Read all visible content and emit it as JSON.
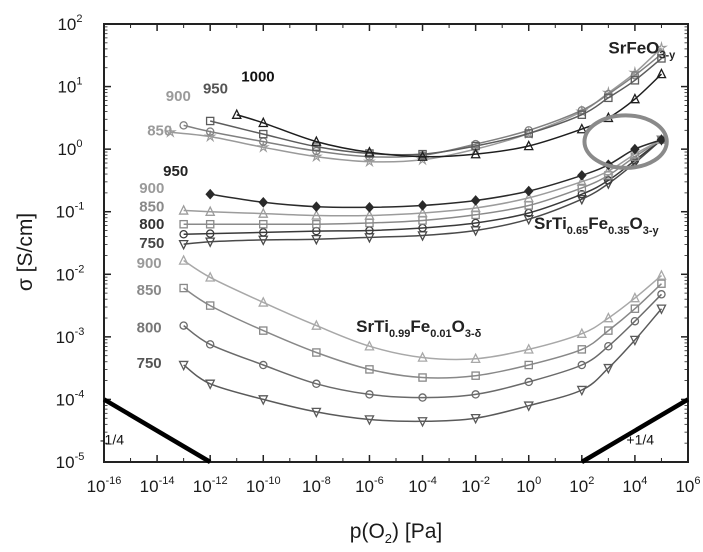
{
  "chart_data": {
    "type": "line",
    "xlabel": "p(O₂)  [Pa]",
    "ylabel": "σ  [S/cm]",
    "x_scale": "log",
    "y_scale": "log",
    "xlim": [
      1e-16,
      1000000.0
    ],
    "ylim": [
      1e-05,
      100
    ],
    "x_ticks": [
      {
        "base": "10",
        "exp": "-16",
        "v": -16
      },
      {
        "base": "10",
        "exp": "-14",
        "v": -14
      },
      {
        "base": "10",
        "exp": "-12",
        "v": -12
      },
      {
        "base": "10",
        "exp": "-10",
        "v": -10
      },
      {
        "base": "10",
        "exp": "-8",
        "v": -8
      },
      {
        "base": "10",
        "exp": "-6",
        "v": -6
      },
      {
        "base": "10",
        "exp": "-4",
        "v": -4
      },
      {
        "base": "10",
        "exp": "-2",
        "v": -2
      },
      {
        "base": "10",
        "exp": "0",
        "v": 0
      },
      {
        "base": "10",
        "exp": "2",
        "v": 2
      },
      {
        "base": "10",
        "exp": "4",
        "v": 4
      },
      {
        "base": "10",
        "exp": "6",
        "v": 6
      }
    ],
    "y_ticks": [
      {
        "base": "10",
        "exp": "2",
        "v": 2
      },
      {
        "base": "10",
        "exp": "1",
        "v": 1
      },
      {
        "base": "10",
        "exp": "0",
        "v": 0
      },
      {
        "base": "10",
        "exp": "-1",
        "v": -1
      },
      {
        "base": "10",
        "exp": "-2",
        "v": -2
      },
      {
        "base": "10",
        "exp": "-3",
        "v": -3
      },
      {
        "base": "10",
        "exp": "-4",
        "v": -4
      },
      {
        "base": "10",
        "exp": "-5",
        "v": -5
      }
    ],
    "grid": false,
    "groups": [
      {
        "material": {
          "parts": [
            [
              "SrFeO",
              ""
            ],
            [
              "3-y",
              "sub"
            ]
          ]
        },
        "series": [
          {
            "name": "850",
            "color": "#9a9a9a",
            "marker": "star",
            "points": [
              [
                -13.5,
                0.27
              ],
              [
                -12,
                0.2
              ],
              [
                -10,
                0.03
              ],
              [
                -8,
                -0.12
              ],
              [
                -6,
                -0.2
              ],
              [
                -4,
                -0.17
              ],
              [
                -2,
                0.0
              ],
              [
                0,
                0.25
              ],
              [
                2,
                0.6
              ],
              [
                3,
                0.9
              ],
              [
                4,
                1.22
              ],
              [
                5,
                1.62
              ]
            ]
          },
          {
            "name": "900",
            "color": "#808080",
            "marker": "circle",
            "points": [
              [
                -13,
                0.38
              ],
              [
                -12,
                0.28
              ],
              [
                -10,
                0.12
              ],
              [
                -8,
                -0.03
              ],
              [
                -6,
                -0.12
              ],
              [
                -4,
                -0.1
              ],
              [
                -2,
                0.08
              ],
              [
                0,
                0.3
              ],
              [
                2,
                0.62
              ],
              [
                3,
                0.88
              ],
              [
                4,
                1.18
              ],
              [
                5,
                1.52
              ]
            ]
          },
          {
            "name": "950",
            "color": "#5c5c5c",
            "marker": "square",
            "points": [
              [
                -12,
                0.45
              ],
              [
                -10,
                0.24
              ],
              [
                -8,
                0.04
              ],
              [
                -6,
                -0.07
              ],
              [
                -4,
                -0.08
              ],
              [
                -2,
                0.05
              ],
              [
                0,
                0.25
              ],
              [
                2,
                0.55
              ],
              [
                3,
                0.82
              ],
              [
                4,
                1.1
              ],
              [
                5,
                1.45
              ]
            ]
          },
          {
            "name": "1000",
            "color": "#1e1e1e",
            "marker": "triangle",
            "points": [
              [
                -11,
                0.55
              ],
              [
                -10,
                0.42
              ],
              [
                -8,
                0.12
              ],
              [
                -6,
                -0.05
              ],
              [
                -4,
                -0.12
              ],
              [
                -2,
                -0.08
              ],
              [
                0,
                0.05
              ],
              [
                2,
                0.32
              ],
              [
                3,
                0.5
              ],
              [
                4,
                0.8
              ],
              [
                5,
                1.2
              ]
            ]
          }
        ],
        "temp_labels": [
          {
            "text": "850",
            "x": -13.9,
            "y": 0.3,
            "color": "#9a9a9a"
          },
          {
            "text": "900",
            "x": -13.2,
            "y": 0.85,
            "color": "#9a9a9a"
          },
          {
            "text": "950",
            "x": -11.8,
            "y": 0.97,
            "color": "#555555"
          },
          {
            "text": "1000",
            "x": -10.2,
            "y": 1.16,
            "color": "#111111"
          }
        ],
        "label_pos": [
          3.0,
          1.53
        ]
      },
      {
        "material": {
          "parts": [
            [
              "SrTi",
              ""
            ],
            [
              "0.65",
              "sub"
            ],
            [
              "Fe",
              ""
            ],
            [
              "0.35",
              "sub"
            ],
            [
              "O",
              ""
            ],
            [
              "3-y",
              "sub"
            ]
          ]
        },
        "series": [
          {
            "name": "750",
            "color": "#4a4a4a",
            "marker": "triangle-down",
            "points": [
              [
                -13,
                -1.52
              ],
              [
                -12,
                -1.48
              ],
              [
                -10,
                -1.45
              ],
              [
                -8,
                -1.44
              ],
              [
                -6,
                -1.41
              ],
              [
                -4,
                -1.38
              ],
              [
                -2,
                -1.3
              ],
              [
                0,
                -1.12
              ],
              [
                2,
                -0.8
              ],
              [
                3,
                -0.55
              ],
              [
                4,
                -0.22
              ],
              [
                5,
                0.15
              ]
            ]
          },
          {
            "name": "800",
            "color": "#3a3a3a",
            "marker": "circle",
            "points": [
              [
                -13,
                -1.36
              ],
              [
                -12,
                -1.35
              ],
              [
                -10,
                -1.33
              ],
              [
                -8,
                -1.31
              ],
              [
                -6,
                -1.3
              ],
              [
                -4,
                -1.26
              ],
              [
                -2,
                -1.18
              ],
              [
                0,
                -1.02
              ],
              [
                2,
                -0.72
              ],
              [
                3,
                -0.5
              ],
              [
                4,
                -0.18
              ],
              [
                5,
                0.15
              ]
            ]
          },
          {
            "name": "850",
            "color": "#8a8a8a",
            "marker": "square",
            "points": [
              [
                -13,
                -1.2
              ],
              [
                -12,
                -1.2
              ],
              [
                -10,
                -1.2
              ],
              [
                -8,
                -1.2
              ],
              [
                -6,
                -1.18
              ],
              [
                -4,
                -1.14
              ],
              [
                -2,
                -1.05
              ],
              [
                0,
                -0.9
              ],
              [
                2,
                -0.62
              ],
              [
                3,
                -0.42
              ],
              [
                4,
                -0.12
              ],
              [
                5,
                0.15
              ]
            ]
          },
          {
            "name": "900",
            "color": "#9c9c9c",
            "marker": "triangle",
            "points": [
              [
                -13,
                -0.98
              ],
              [
                -12,
                -1.0
              ],
              [
                -10,
                -1.03
              ],
              [
                -8,
                -1.06
              ],
              [
                -6,
                -1.06
              ],
              [
                -4,
                -1.02
              ],
              [
                -2,
                -0.94
              ],
              [
                0,
                -0.78
              ],
              [
                2,
                -0.52
              ],
              [
                3,
                -0.35
              ],
              [
                4,
                -0.08
              ],
              [
                5,
                0.15
              ]
            ]
          },
          {
            "name": "950",
            "color": "#2a2a2a",
            "marker": "diamond",
            "points": [
              [
                -12,
                -0.72
              ],
              [
                -10,
                -0.85
              ],
              [
                -8,
                -0.92
              ],
              [
                -6,
                -0.93
              ],
              [
                -4,
                -0.9
              ],
              [
                -2,
                -0.82
              ],
              [
                0,
                -0.67
              ],
              [
                2,
                -0.42
              ],
              [
                3,
                -0.25
              ],
              [
                4,
                0.0
              ],
              [
                5,
                0.15
              ]
            ]
          }
        ],
        "temp_labels": [
          {
            "text": "950",
            "x": -13.3,
            "y": -0.35,
            "color": "#222222"
          },
          {
            "text": "900",
            "x": -14.2,
            "y": -0.62,
            "color": "#9a9a9a"
          },
          {
            "text": "850",
            "x": -14.2,
            "y": -0.92,
            "color": "#8a8a8a"
          },
          {
            "text": "800",
            "x": -14.2,
            "y": -1.2,
            "color": "#333333"
          },
          {
            "text": "750",
            "x": -14.2,
            "y": -1.5,
            "color": "#444444"
          }
        ],
        "label_pos": [
          0.2,
          -1.28
        ]
      },
      {
        "material": {
          "parts": [
            [
              "SrTi",
              ""
            ],
            [
              "0.99",
              "sub"
            ],
            [
              "Fe",
              ""
            ],
            [
              "0.01",
              "sub"
            ],
            [
              "O",
              ""
            ],
            [
              "3-δ",
              "sub"
            ]
          ]
        },
        "series": [
          {
            "name": "750",
            "color": "#5a5a5a",
            "marker": "triangle-down",
            "points": [
              [
                -13,
                -3.45
              ],
              [
                -12,
                -3.75
              ],
              [
                -10,
                -4.0
              ],
              [
                -8,
                -4.2
              ],
              [
                -6,
                -4.32
              ],
              [
                -4,
                -4.35
              ],
              [
                -2,
                -4.3
              ],
              [
                0,
                -4.1
              ],
              [
                2,
                -3.85
              ],
              [
                3,
                -3.5
              ],
              [
                4,
                -3.05
              ],
              [
                5,
                -2.55
              ]
            ]
          },
          {
            "name": "800",
            "color": "#6a6a6a",
            "marker": "circle",
            "points": [
              [
                -13,
                -2.82
              ],
              [
                -12,
                -3.12
              ],
              [
                -10,
                -3.45
              ],
              [
                -8,
                -3.75
              ],
              [
                -6,
                -3.92
              ],
              [
                -4,
                -3.97
              ],
              [
                -2,
                -3.92
              ],
              [
                0,
                -3.72
              ],
              [
                2,
                -3.45
              ],
              [
                3,
                -3.15
              ],
              [
                4,
                -2.75
              ],
              [
                5,
                -2.32
              ]
            ]
          },
          {
            "name": "850",
            "color": "#888888",
            "marker": "square",
            "points": [
              [
                -13,
                -2.22
              ],
              [
                -12,
                -2.5
              ],
              [
                -10,
                -2.9
              ],
              [
                -8,
                -3.25
              ],
              [
                -6,
                -3.52
              ],
              [
                -4,
                -3.65
              ],
              [
                -2,
                -3.62
              ],
              [
                0,
                -3.45
              ],
              [
                2,
                -3.2
              ],
              [
                3,
                -2.9
              ],
              [
                4,
                -2.55
              ],
              [
                5,
                -2.15
              ]
            ]
          },
          {
            "name": "900",
            "color": "#a8a8a8",
            "marker": "triangle",
            "points": [
              [
                -13,
                -1.78
              ],
              [
                -12,
                -2.05
              ],
              [
                -10,
                -2.45
              ],
              [
                -8,
                -2.82
              ],
              [
                -6,
                -3.15
              ],
              [
                -4,
                -3.33
              ],
              [
                -2,
                -3.35
              ],
              [
                0,
                -3.2
              ],
              [
                2,
                -2.95
              ],
              [
                3,
                -2.7
              ],
              [
                4,
                -2.38
              ],
              [
                5,
                -2.02
              ]
            ]
          }
        ],
        "temp_labels": [
          {
            "text": "900",
            "x": -14.3,
            "y": -1.82,
            "color": "#9a9a9a"
          },
          {
            "text": "850",
            "x": -14.3,
            "y": -2.25,
            "color": "#8a8a8a"
          },
          {
            "text": "800",
            "x": -14.3,
            "y": -2.85,
            "color": "#777777"
          },
          {
            "text": "750",
            "x": -14.3,
            "y": -3.42,
            "color": "#555555"
          }
        ],
        "label_pos": [
          -6.5,
          -2.92
        ]
      }
    ],
    "slopes": [
      {
        "label": "-1/4",
        "from": [
          -16,
          -4
        ],
        "to": [
          -12,
          -5
        ],
        "text_pos": [
          -15.7,
          -4.72
        ]
      },
      {
        "label": "+1/4",
        "from": [
          2,
          -5
        ],
        "to": [
          6,
          -4
        ],
        "text_pos": [
          4.2,
          -4.72
        ]
      }
    ],
    "highlight_ellipse": {
      "center": [
        3.65,
        0.12
      ],
      "rx": 1.55,
      "ry": 0.42
    }
  }
}
